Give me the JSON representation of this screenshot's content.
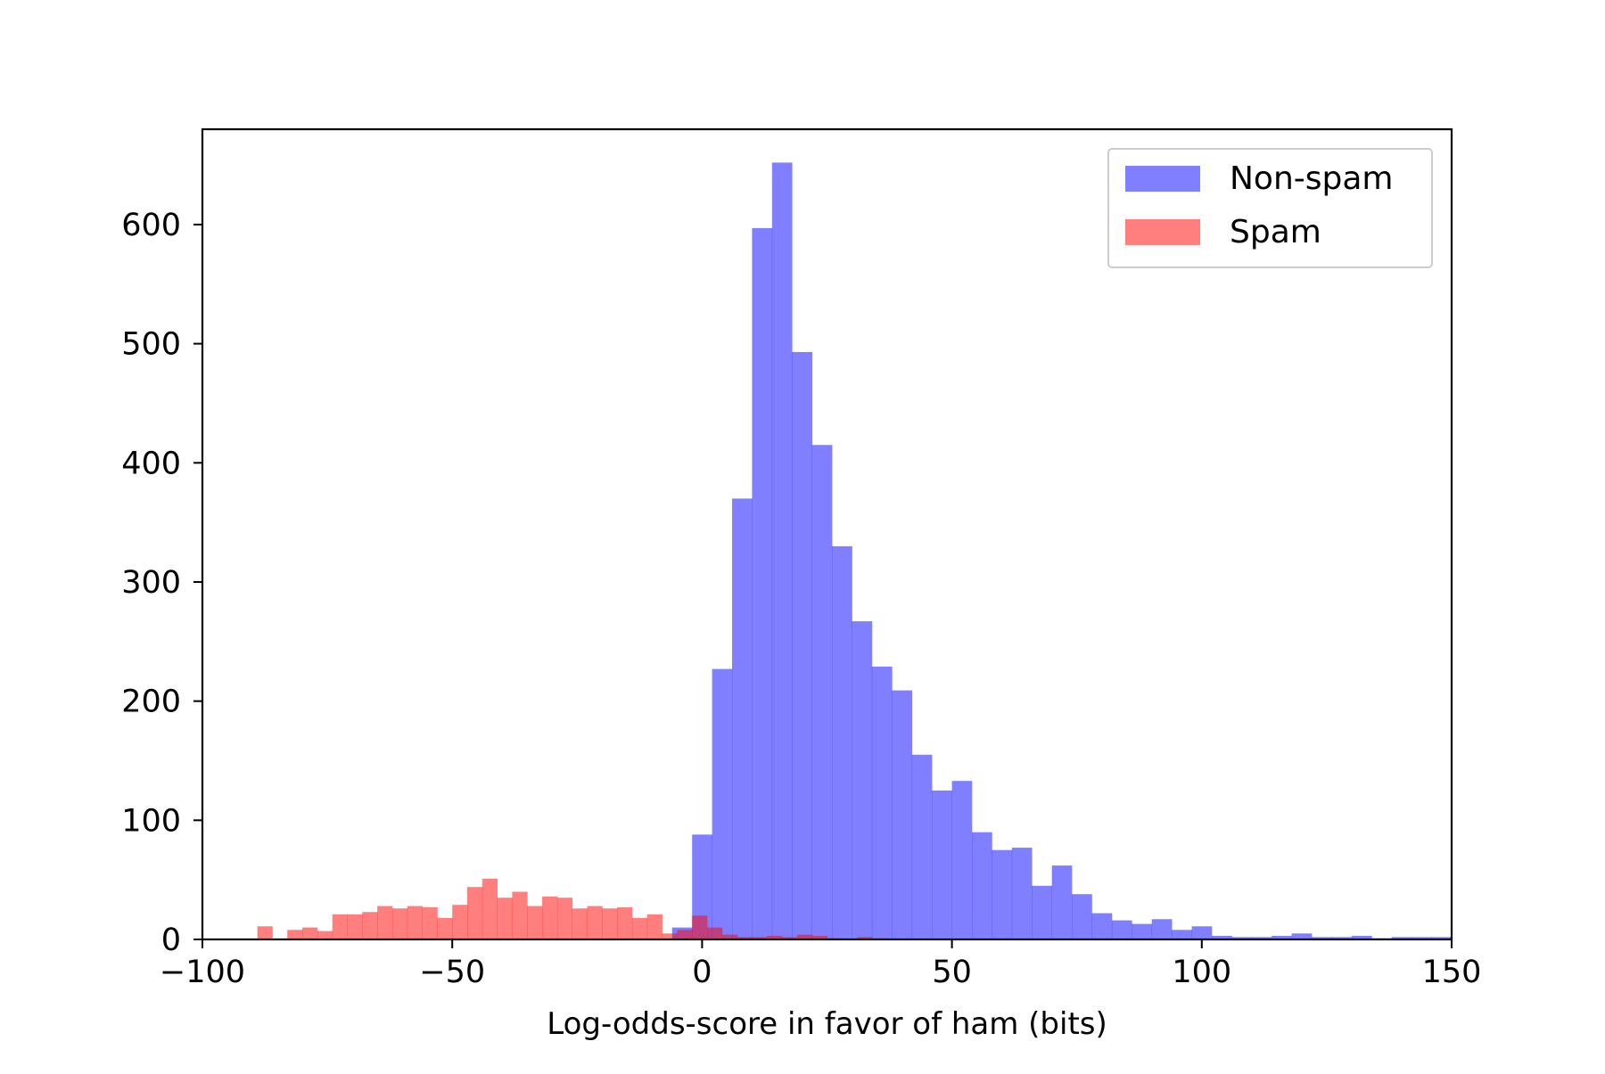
{
  "chart_data": {
    "type": "bar",
    "title": "",
    "xlabel": "Log-odds-score in favor of ham (bits)",
    "ylabel": "",
    "xlim": [
      -100,
      150
    ],
    "ylim": [
      0,
      680
    ],
    "xticks": [
      -100,
      -50,
      0,
      50,
      100,
      150
    ],
    "xtick_labels": [
      "−100",
      "−50",
      "0",
      "50",
      "100",
      "150"
    ],
    "yticks": [
      0,
      100,
      200,
      300,
      400,
      500,
      600
    ],
    "ytick_labels": [
      "0",
      "100",
      "200",
      "300",
      "400",
      "500",
      "600"
    ],
    "grid": false,
    "legend_position": "top-right",
    "series": [
      {
        "name": "Non-spam",
        "color": "#0000ff",
        "alpha": 0.5,
        "bin_width": 4.05,
        "bin_starts": [
          -6,
          -2,
          2,
          6,
          10,
          14,
          18,
          22,
          26,
          30,
          34,
          38,
          42,
          46,
          50,
          54,
          58,
          62,
          66,
          70,
          74,
          78,
          82,
          86,
          90,
          94,
          98,
          102,
          106,
          110,
          114,
          118,
          122,
          126,
          130,
          134,
          138,
          142,
          146
        ],
        "counts": [
          10,
          88,
          227,
          370,
          597,
          652,
          493,
          415,
          330,
          267,
          229,
          209,
          155,
          125,
          133,
          90,
          75,
          77,
          45,
          62,
          38,
          22,
          16,
          13,
          17,
          8,
          11,
          3,
          2,
          2,
          3,
          5,
          2,
          2,
          3,
          1,
          2,
          2,
          2
        ]
      },
      {
        "name": "Spam",
        "color": "#ff0000",
        "alpha": 0.5,
        "bin_width": 3.07,
        "bin_starts": [
          -89,
          -86,
          -83,
          -80,
          -77,
          -74,
          -71,
          -68,
          -65,
          -62,
          -59,
          -56,
          -53,
          -50,
          -47,
          -44,
          -41,
          -38,
          -35,
          -32,
          -29,
          -26,
          -23,
          -20,
          -17,
          -14,
          -11,
          -8,
          -5,
          -2,
          1,
          4,
          7,
          10,
          13,
          16,
          19,
          22,
          25,
          28,
          31,
          34
        ],
        "counts": [
          11,
          0,
          8,
          10,
          7,
          21,
          21,
          23,
          28,
          26,
          28,
          27,
          18,
          29,
          44,
          51,
          35,
          40,
          28,
          36,
          35,
          26,
          28,
          26,
          27,
          18,
          21,
          5,
          8,
          20,
          10,
          4,
          2,
          2,
          3,
          2,
          4,
          3,
          1,
          0,
          2,
          1
        ]
      }
    ]
  }
}
